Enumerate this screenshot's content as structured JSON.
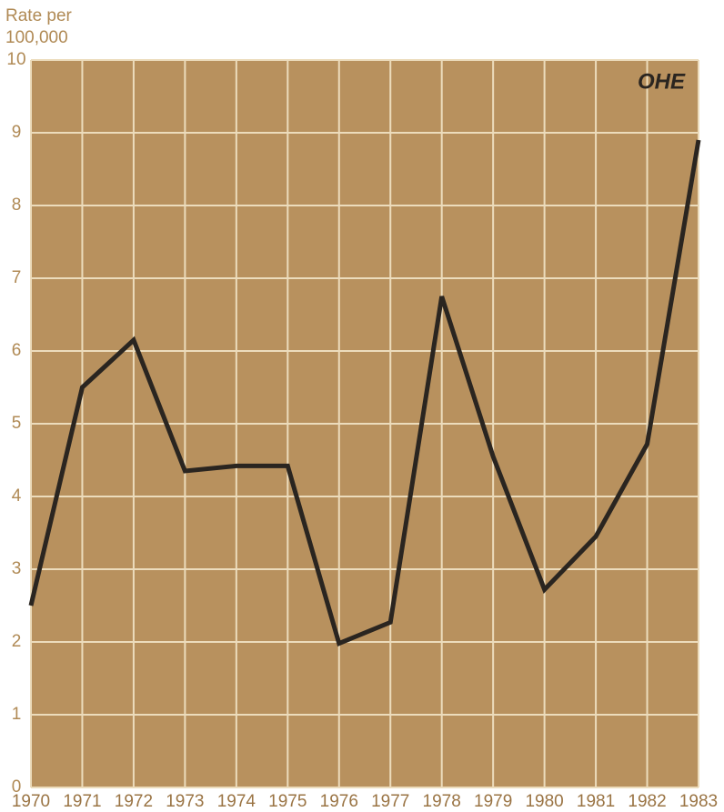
{
  "chart_data": {
    "type": "line",
    "ylabel": "Rate per 100,000",
    "logo": "OHE",
    "x": [
      1970,
      1971,
      1972,
      1973,
      1974,
      1975,
      1976,
      1977,
      1978,
      1979,
      1980,
      1981,
      1982,
      1983
    ],
    "series": [
      {
        "color": "#2a2520",
        "values": [
          2.5,
          5.5,
          6.15,
          4.35,
          4.42,
          4.42,
          1.98,
          2.27,
          6.75,
          4.55,
          2.72,
          3.45,
          4.72,
          8.9
        ]
      }
    ],
    "xlim": [
      1970,
      1983
    ],
    "xticks": [
      1970,
      1971,
      1972,
      1973,
      1974,
      1975,
      1976,
      1977,
      1978,
      1979,
      1980,
      1981,
      1982,
      1983
    ],
    "ylim": [
      0,
      10
    ],
    "yticks": [
      0,
      1,
      2,
      3,
      4,
      5,
      6,
      7,
      8,
      9,
      10
    ],
    "grid": true,
    "background": "#b8915e",
    "grid_color": "#ecdcbc"
  }
}
